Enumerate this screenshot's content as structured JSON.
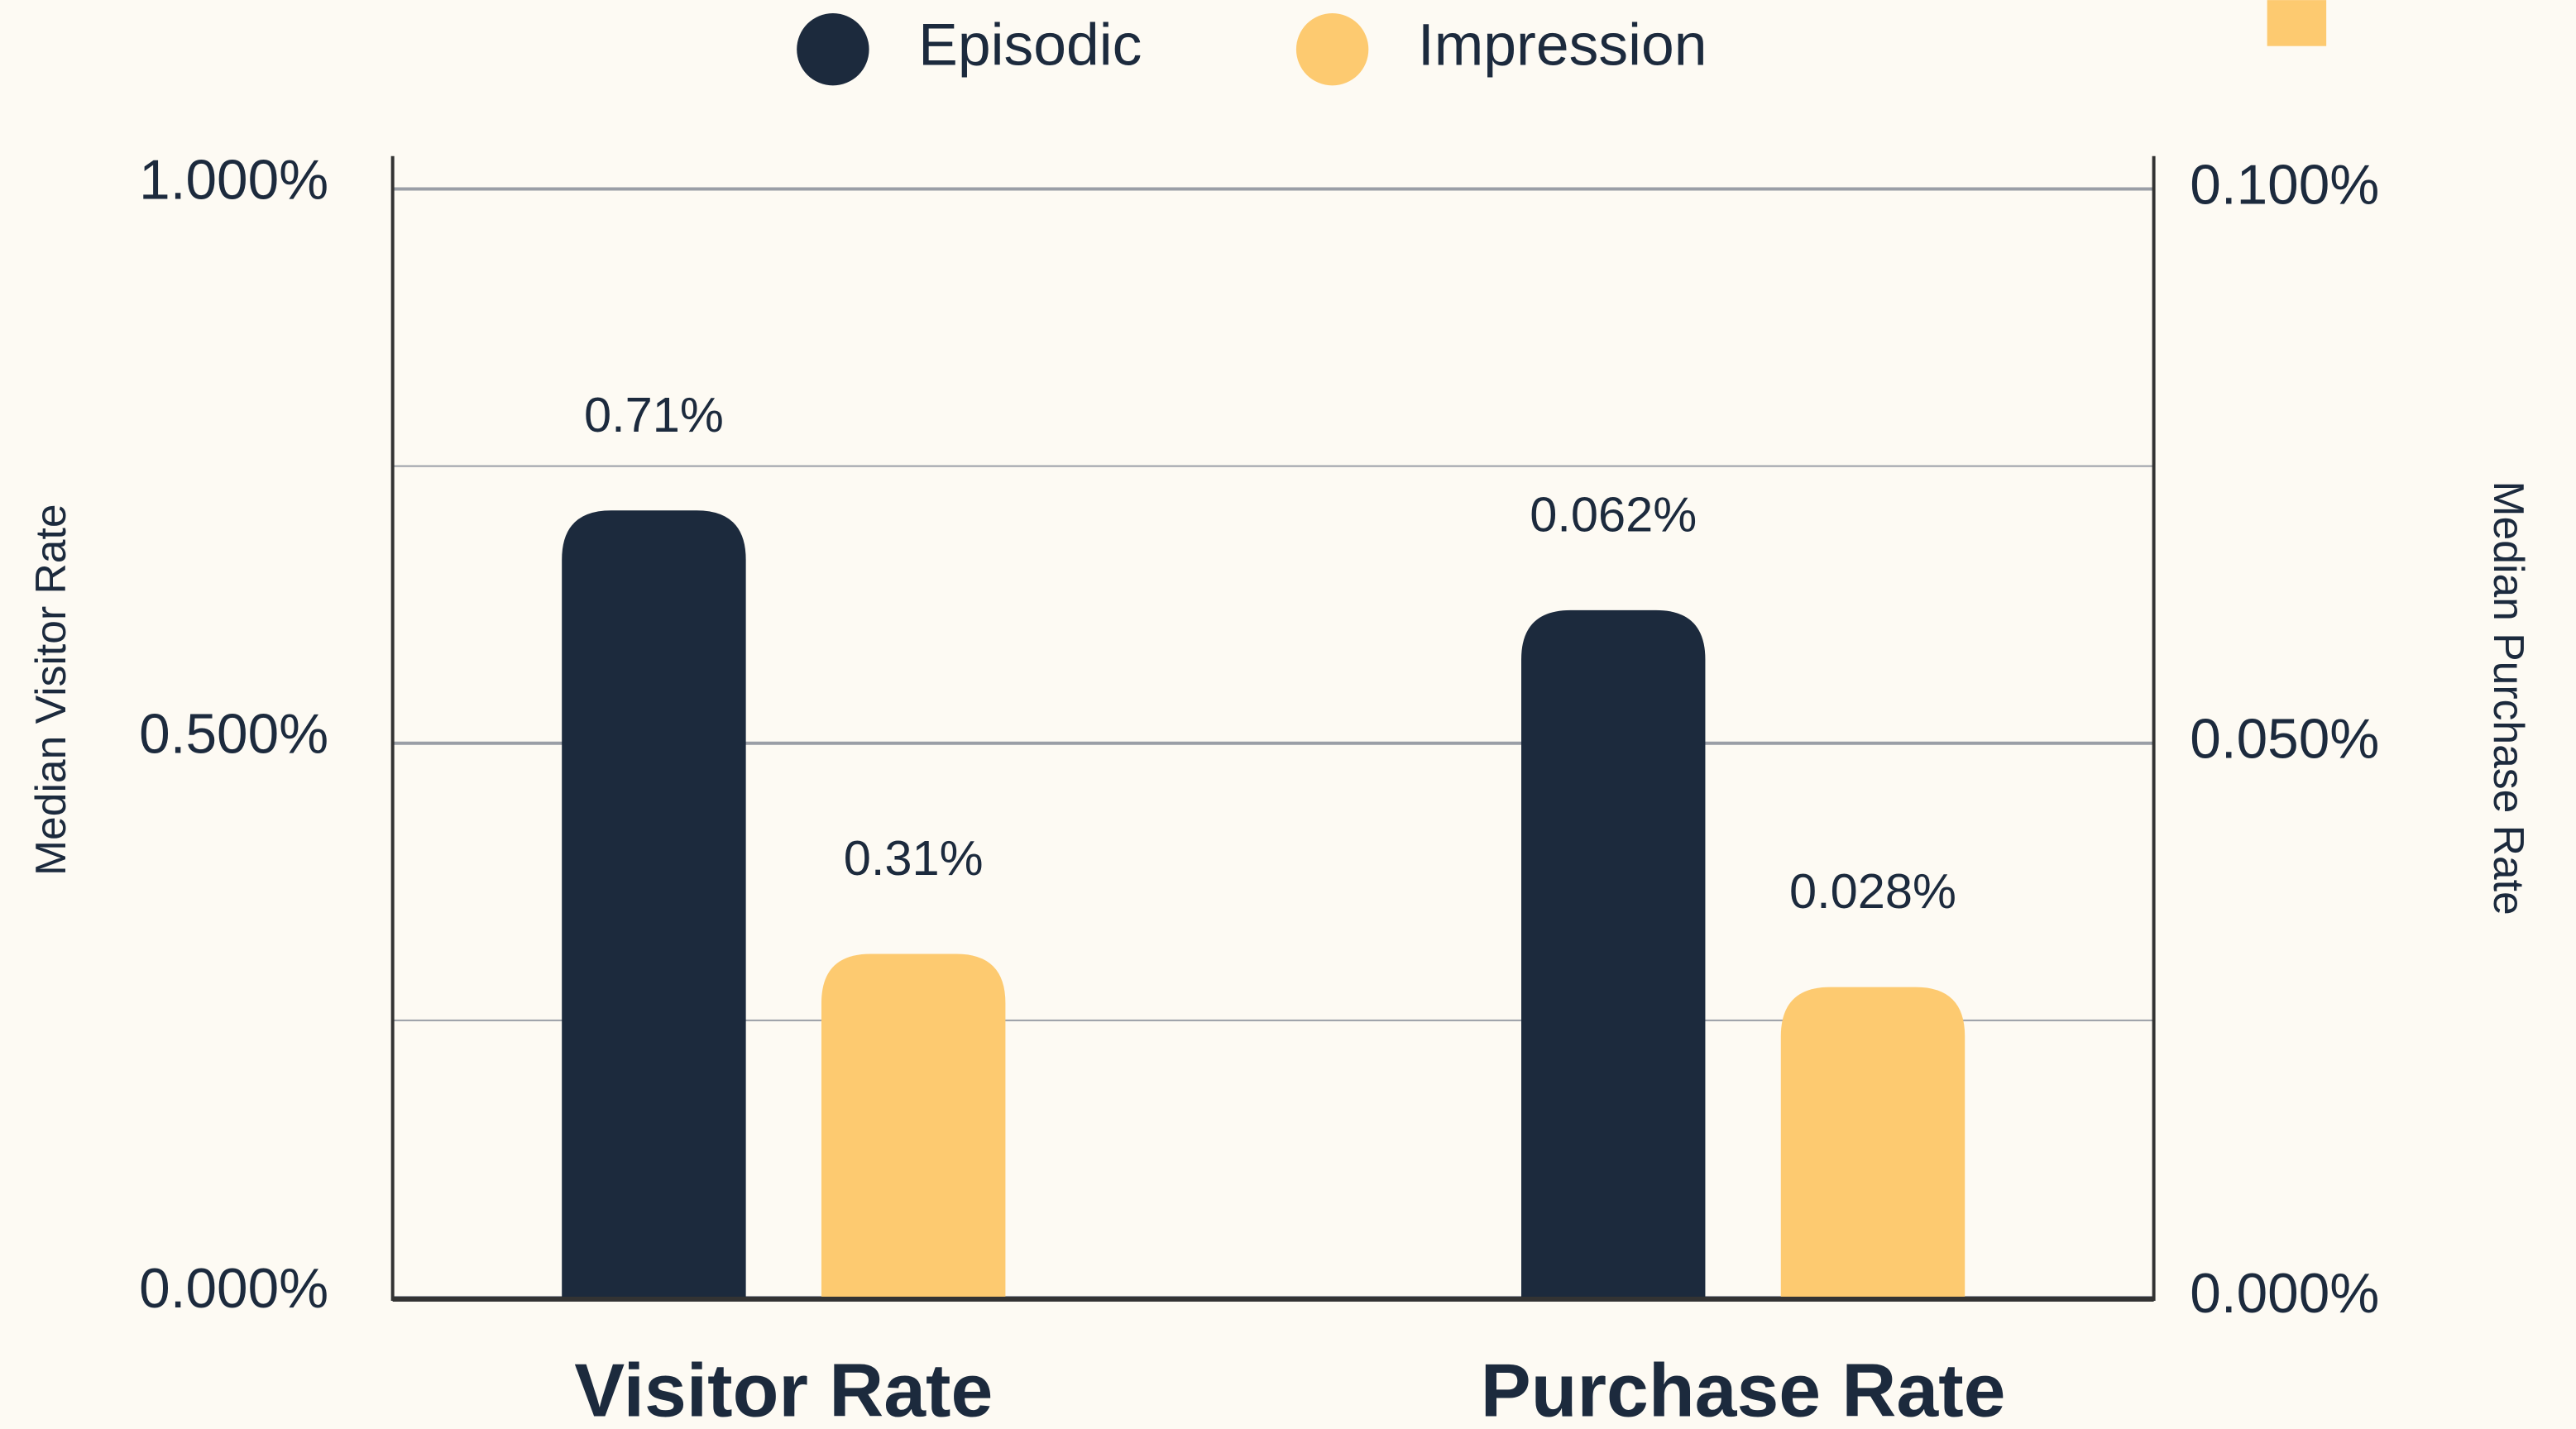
{
  "chart_data": {
    "type": "bar",
    "categories": [
      "Visitor Rate",
      "Purchase Rate"
    ],
    "category_axes": [
      "y",
      "y2"
    ],
    "series": [
      {
        "name": "Episodic",
        "color": "#1c2a3d",
        "values": [
          0.71,
          0.062
        ],
        "value_labels": [
          "0.71%",
          "0.062%"
        ]
      },
      {
        "name": "Impression",
        "color": "#fdca70",
        "values": [
          0.31,
          0.028
        ],
        "value_labels": [
          "0.31%",
          "0.028%"
        ]
      }
    ],
    "ylabel": "Median Visitor Rate",
    "y2label": "Median Purchase Rate",
    "ylim": [
      0,
      1
    ],
    "yticks": [
      {
        "value": 0,
        "label": "0.000%"
      },
      {
        "value": 0.5,
        "label": "0.500%"
      },
      {
        "value": 1,
        "label": "1.000%"
      }
    ],
    "minor_yticks": [
      0.25,
      0.75
    ],
    "y2lim": [
      0,
      0.1
    ],
    "y2ticks": [
      {
        "value": 0,
        "label": "0.000%"
      },
      {
        "value": 0.05,
        "label": "0.050%"
      },
      {
        "value": 0.1,
        "label": "0.100%"
      }
    ],
    "grid": true,
    "legend": "top"
  }
}
